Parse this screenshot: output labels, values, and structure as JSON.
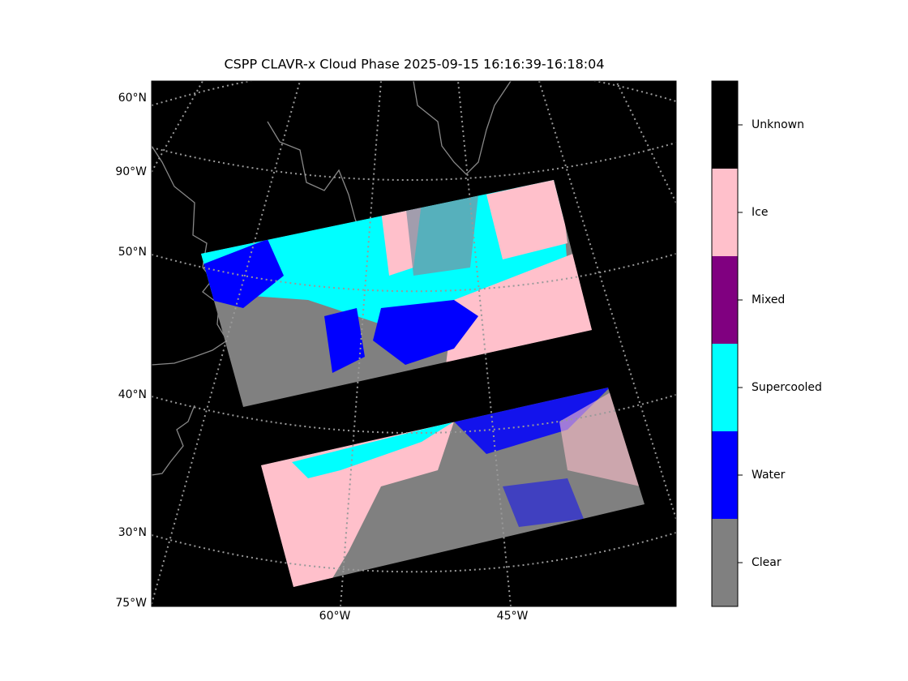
{
  "title": "CSPP CLAVR-x Cloud Phase 2025-09-15 16:16:39-16:18:04",
  "map": {
    "lat_labels": [
      "60°N",
      "50°N",
      "40°N",
      "30°N"
    ],
    "lon_labels": [
      "90°W",
      "75°W",
      "60°W",
      "45°W"
    ]
  },
  "colorbar": {
    "classes": [
      {
        "name": "Clear",
        "color": "#808080"
      },
      {
        "name": "Water",
        "color": "#0000ff"
      },
      {
        "name": "Supercooled",
        "color": "#00ffff"
      },
      {
        "name": "Mixed",
        "color": "#800080"
      },
      {
        "name": "Ice",
        "color": "#ffc0cb"
      },
      {
        "name": "Unknown",
        "color": "#000000"
      }
    ]
  }
}
